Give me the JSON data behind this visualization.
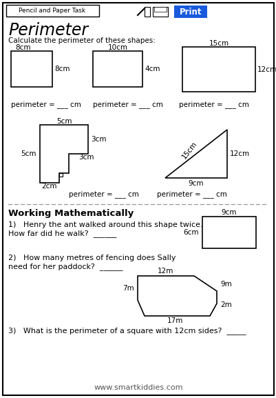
{
  "title": "Perimeter",
  "subtitle": "Calculate the perimeter of these shapes:",
  "header_label": "Pencil and Paper Task",
  "print_button": "Print",
  "working_math_title": "Working Mathematically",
  "q1_line1": "1)   Henry the ant walked around this shape twice.",
  "q1_line2": "How far did he walk?  ______",
  "q2_line1": "2)   How many metres of fencing does Sally",
  "q2_line2": "need for her paddock?  ______",
  "q3_text": "3)   What is the perimeter of a square with 12cm sides?  _____",
  "footer": "www.smartkiddies.com",
  "bg_color": "#ffffff",
  "border_color": "#000000",
  "blue_btn_color": "#1a5adc",
  "text_color": "#000000",
  "orange_color": "#cc6600"
}
